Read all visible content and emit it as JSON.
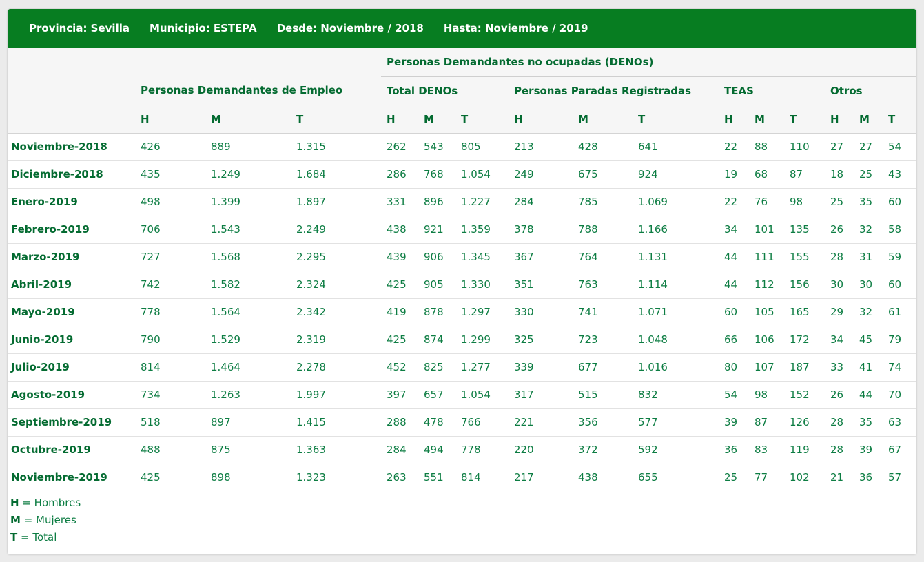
{
  "colors": {
    "header_bar_green": "#077d21",
    "heading_text_green": "#046b31",
    "data_text_green": "#0d7d43",
    "page_background": "#ebebeb",
    "card_background": "#ffffff"
  },
  "titlebar": {
    "items": [
      "Provincia: Sevilla",
      "Municipio: ESTEPA",
      "Desde: Noviembre / 2018",
      "Hasta: Noviembre / 2019"
    ]
  },
  "table": {
    "deno_group_header": "Personas Demandantes no ocupadas (DENOs)",
    "groups": [
      {
        "label": "Personas Demandantes de Empleo",
        "cols": [
          "H",
          "M",
          "T"
        ]
      },
      {
        "label": "Total DENOs",
        "cols": [
          "H",
          "M",
          "T"
        ]
      },
      {
        "label": "Personas Paradas Registradas",
        "cols": [
          "H",
          "M",
          "T"
        ]
      },
      {
        "label": "TEAS",
        "cols": [
          "H",
          "M",
          "T"
        ]
      },
      {
        "label": "Otros",
        "cols": [
          "H",
          "M",
          "T"
        ]
      }
    ],
    "rows": [
      {
        "label": "Noviembre-2018",
        "values": [
          "426",
          "889",
          "1.315",
          "262",
          "543",
          "805",
          "213",
          "428",
          "641",
          "22",
          "88",
          "110",
          "27",
          "27",
          "54"
        ]
      },
      {
        "label": "Diciembre-2018",
        "values": [
          "435",
          "1.249",
          "1.684",
          "286",
          "768",
          "1.054",
          "249",
          "675",
          "924",
          "19",
          "68",
          "87",
          "18",
          "25",
          "43"
        ]
      },
      {
        "label": "Enero-2019",
        "values": [
          "498",
          "1.399",
          "1.897",
          "331",
          "896",
          "1.227",
          "284",
          "785",
          "1.069",
          "22",
          "76",
          "98",
          "25",
          "35",
          "60"
        ]
      },
      {
        "label": "Febrero-2019",
        "values": [
          "706",
          "1.543",
          "2.249",
          "438",
          "921",
          "1.359",
          "378",
          "788",
          "1.166",
          "34",
          "101",
          "135",
          "26",
          "32",
          "58"
        ]
      },
      {
        "label": "Marzo-2019",
        "values": [
          "727",
          "1.568",
          "2.295",
          "439",
          "906",
          "1.345",
          "367",
          "764",
          "1.131",
          "44",
          "111",
          "155",
          "28",
          "31",
          "59"
        ]
      },
      {
        "label": "Abril-2019",
        "values": [
          "742",
          "1.582",
          "2.324",
          "425",
          "905",
          "1.330",
          "351",
          "763",
          "1.114",
          "44",
          "112",
          "156",
          "30",
          "30",
          "60"
        ]
      },
      {
        "label": "Mayo-2019",
        "values": [
          "778",
          "1.564",
          "2.342",
          "419",
          "878",
          "1.297",
          "330",
          "741",
          "1.071",
          "60",
          "105",
          "165",
          "29",
          "32",
          "61"
        ]
      },
      {
        "label": "Junio-2019",
        "values": [
          "790",
          "1.529",
          "2.319",
          "425",
          "874",
          "1.299",
          "325",
          "723",
          "1.048",
          "66",
          "106",
          "172",
          "34",
          "45",
          "79"
        ]
      },
      {
        "label": "Julio-2019",
        "values": [
          "814",
          "1.464",
          "2.278",
          "452",
          "825",
          "1.277",
          "339",
          "677",
          "1.016",
          "80",
          "107",
          "187",
          "33",
          "41",
          "74"
        ]
      },
      {
        "label": "Agosto-2019",
        "values": [
          "734",
          "1.263",
          "1.997",
          "397",
          "657",
          "1.054",
          "317",
          "515",
          "832",
          "54",
          "98",
          "152",
          "26",
          "44",
          "70"
        ]
      },
      {
        "label": "Septiembre-2019",
        "values": [
          "518",
          "897",
          "1.415",
          "288",
          "478",
          "766",
          "221",
          "356",
          "577",
          "39",
          "87",
          "126",
          "28",
          "35",
          "63"
        ]
      },
      {
        "label": "Octubre-2019",
        "values": [
          "488",
          "875",
          "1.363",
          "284",
          "494",
          "778",
          "220",
          "372",
          "592",
          "36",
          "83",
          "119",
          "28",
          "39",
          "67"
        ]
      },
      {
        "label": "Noviembre-2019",
        "values": [
          "425",
          "898",
          "1.323",
          "263",
          "551",
          "814",
          "217",
          "438",
          "655",
          "25",
          "77",
          "102",
          "21",
          "36",
          "57"
        ]
      }
    ]
  },
  "legend": [
    {
      "key": "H",
      "text": " = Hombres"
    },
    {
      "key": "M",
      "text": " = Mujeres"
    },
    {
      "key": "T",
      "text": " = Total"
    }
  ]
}
